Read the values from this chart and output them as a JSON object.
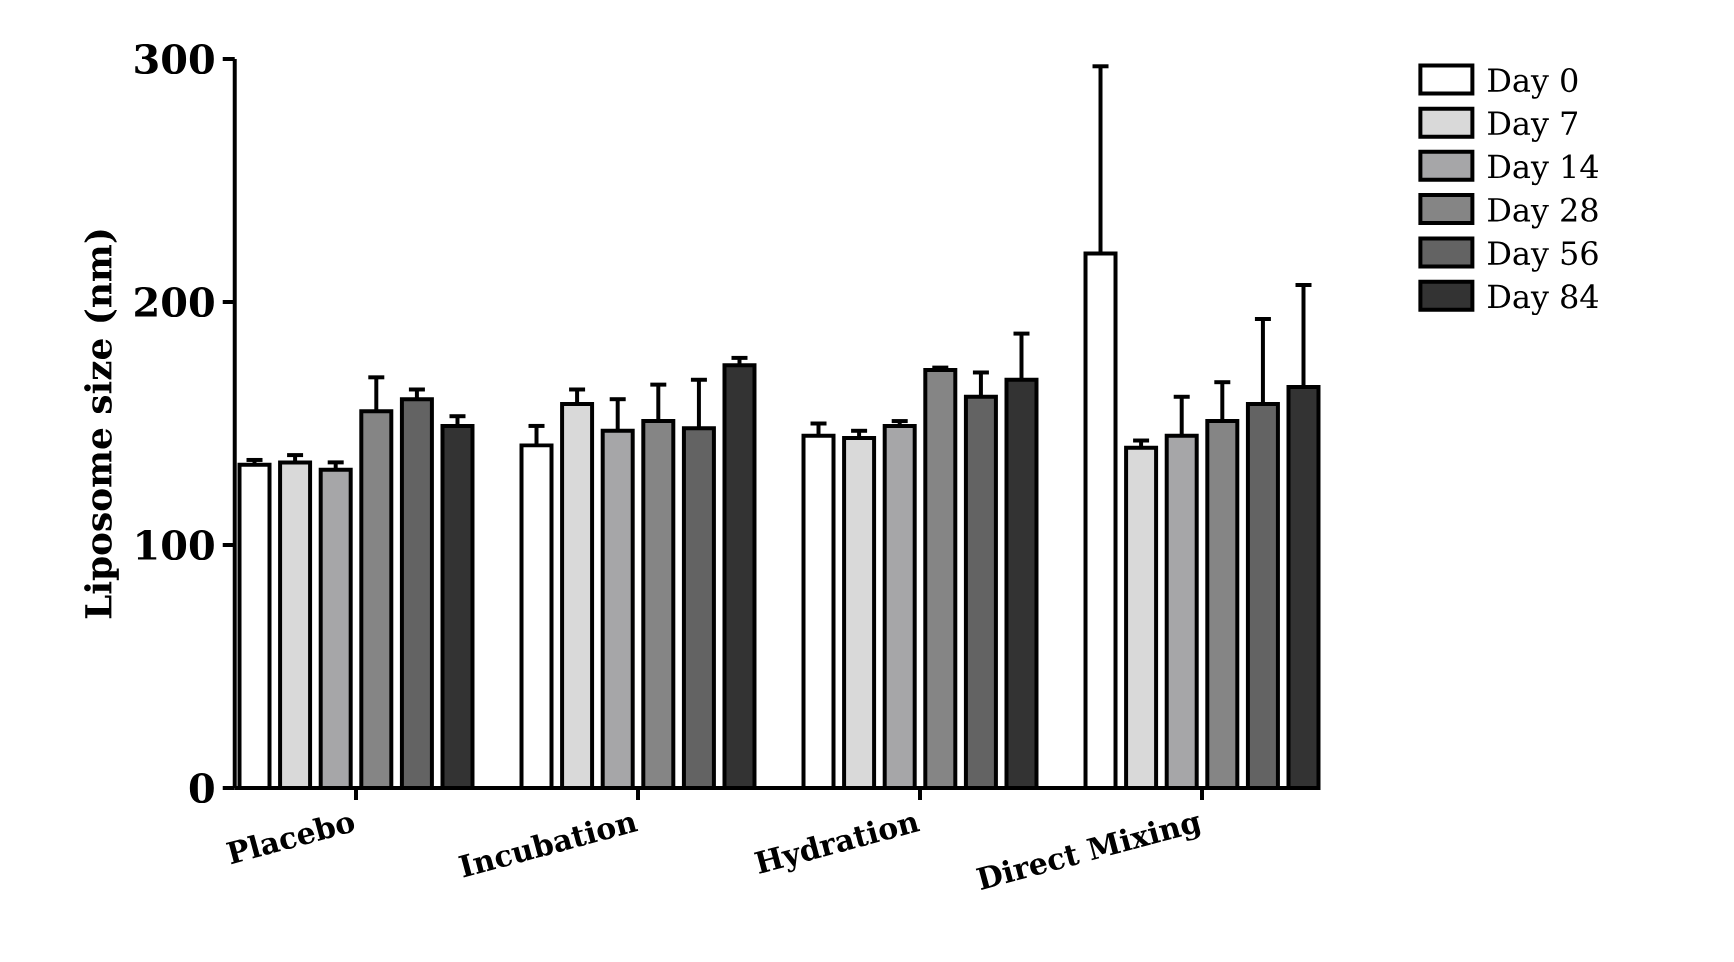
{
  "chart_data": {
    "type": "bar",
    "ylabel": "Liposome size (nm)",
    "categories": [
      "Placebo",
      "Incubation",
      "Hydration",
      "Direct Mixing"
    ],
    "series": [
      {
        "name": "Day 0",
        "color": "#ffffff",
        "values": [
          133,
          141,
          145,
          220
        ],
        "errors": [
          2,
          8,
          5,
          77
        ]
      },
      {
        "name": "Day 7",
        "color": "#d9d9d9",
        "values": [
          134,
          158,
          144,
          140
        ],
        "errors": [
          3,
          6,
          3,
          3
        ]
      },
      {
        "name": "Day 14",
        "color": "#a6a6a8",
        "values": [
          131,
          147,
          149,
          145
        ],
        "errors": [
          3,
          13,
          2,
          16
        ]
      },
      {
        "name": "Day 28",
        "color": "#858585",
        "values": [
          155,
          151,
          172,
          151
        ],
        "errors": [
          14,
          15,
          1,
          16
        ]
      },
      {
        "name": "Day 56",
        "color": "#636363",
        "values": [
          160,
          148,
          161,
          158
        ],
        "errors": [
          4,
          20,
          10,
          35
        ]
      },
      {
        "name": "Day 84",
        "color": "#333333",
        "values": [
          149,
          174,
          168,
          165
        ],
        "errors": [
          4,
          3,
          19,
          42
        ]
      }
    ],
    "ylim": [
      0,
      300
    ],
    "yticks": [
      0,
      100,
      200,
      300
    ],
    "legend": "right"
  }
}
